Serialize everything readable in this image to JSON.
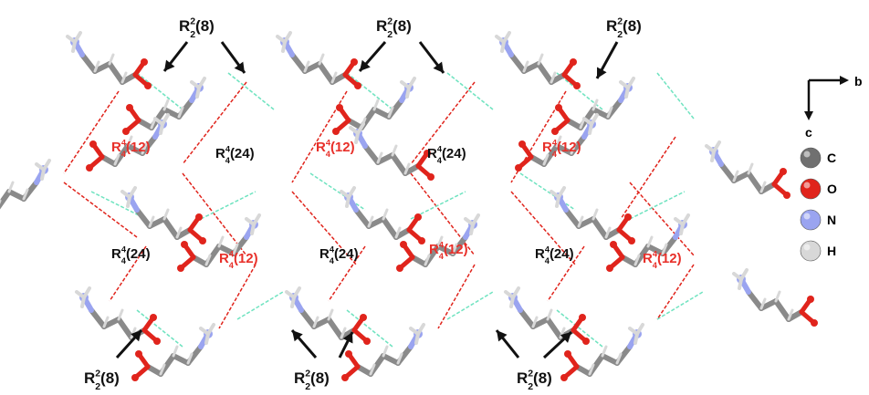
{
  "motif_labels": [
    {
      "base": "R",
      "sup": "2",
      "sub": "2",
      "size": "(8)",
      "color": "#111111"
    },
    {
      "base": "R",
      "sup": "4",
      "sub": "4",
      "size": "(12)",
      "color": "#e8302a"
    },
    {
      "base": "R",
      "sup": "4",
      "sub": "4",
      "size": "(24)",
      "color": "#111111"
    }
  ],
  "axes": {
    "horizontal": "b",
    "vertical": "c"
  },
  "legend": [
    {
      "symbol": "C",
      "color": "#707070"
    },
    {
      "symbol": "O",
      "color": "#e0241c"
    },
    {
      "symbol": "N",
      "color": "#9aa4f0"
    },
    {
      "symbol": "H",
      "color": "#d8d8d8"
    }
  ],
  "colors": {
    "bond": "#8a8a8a",
    "hbond_NH_O": "#6fe3c0",
    "hbond_OH_O": "#e0241c"
  }
}
